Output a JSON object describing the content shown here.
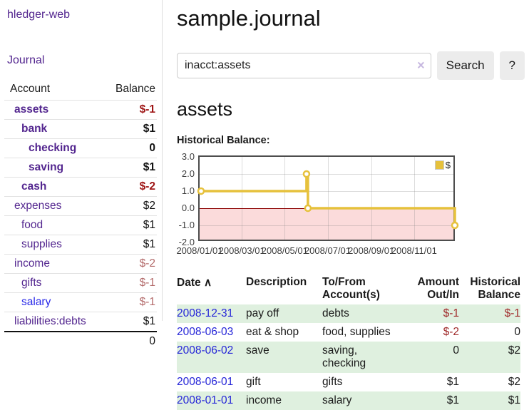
{
  "sidebar": {
    "brand": "hledger-web",
    "nav": {
      "journal": "Journal"
    },
    "accounts": {
      "headers": {
        "account": "Account",
        "balance": "Balance"
      },
      "rows": [
        {
          "name": "assets",
          "balance": "$-1"
        },
        {
          "name": "bank",
          "balance": "$1"
        },
        {
          "name": "checking",
          "balance": "0"
        },
        {
          "name": "saving",
          "balance": "$1"
        },
        {
          "name": "cash",
          "balance": "$-2"
        },
        {
          "name": "expenses",
          "balance": "$2"
        },
        {
          "name": "food",
          "balance": "$1"
        },
        {
          "name": "supplies",
          "balance": "$1"
        },
        {
          "name": "income",
          "balance": "$-2"
        },
        {
          "name": "gifts",
          "balance": "$-1"
        },
        {
          "name": "salary",
          "balance": "$-1"
        },
        {
          "name": "liabilities:debts",
          "balance": "$1"
        }
      ],
      "total": "0"
    }
  },
  "main": {
    "title": "sample.journal",
    "search": {
      "value": "inacct:assets",
      "clear_icon": "×",
      "button": "Search",
      "help_button": "?"
    },
    "account_heading": "assets",
    "chart_heading": "Historical Balance:"
  },
  "chart_data": {
    "type": "line",
    "step": true,
    "title": "Historical Balance:",
    "series": [
      {
        "name": "$",
        "color": "#e6c13c",
        "points": [
          [
            "2008-01-01",
            1
          ],
          [
            "2008-06-01",
            2
          ],
          [
            "2008-06-03",
            0
          ],
          [
            "2008-12-31",
            -1
          ]
        ]
      }
    ],
    "x_range": [
      "2008-01-01",
      "2008-12-31"
    ],
    "ylim": [
      -2,
      3
    ],
    "yticks": [
      "3.0",
      "2.0",
      "1.0",
      "0.0",
      "-1.0",
      "-2.0"
    ],
    "ytick_values": [
      3,
      2,
      1,
      0,
      -1,
      -2
    ],
    "xticks": [
      "2008/01/01",
      "2008/03/01",
      "2008/05/01",
      "2008/07/01",
      "2008/09/01",
      "2008/11/01"
    ],
    "grid": true,
    "legend": {
      "label": "$",
      "position": "top-right"
    },
    "negative_region_color": "#fbdbdb",
    "zero_line_color": "#8b0000"
  },
  "register": {
    "headers": {
      "date": "Date",
      "sort_arrow": "∧",
      "description": "Description",
      "accounts": "To/From Account(s)",
      "amount": "Amount Out/In",
      "balance": "Historical Balance"
    },
    "rows": [
      {
        "date": "2008-12-31",
        "description": "pay off",
        "accounts": "debts",
        "amount": "$-1",
        "balance": "$-1"
      },
      {
        "date": "2008-06-03",
        "description": "eat & shop",
        "accounts": "food, supplies",
        "amount": "$-2",
        "balance": "0"
      },
      {
        "date": "2008-06-02",
        "description": "save",
        "accounts": "saving, checking",
        "amount": "0",
        "balance": "$2"
      },
      {
        "date": "2008-06-01",
        "description": "gift",
        "accounts": "gifts",
        "amount": "$1",
        "balance": "$2"
      },
      {
        "date": "2008-01-01",
        "description": "income",
        "accounts": "salary",
        "amount": "$1",
        "balance": "$1"
      }
    ]
  }
}
